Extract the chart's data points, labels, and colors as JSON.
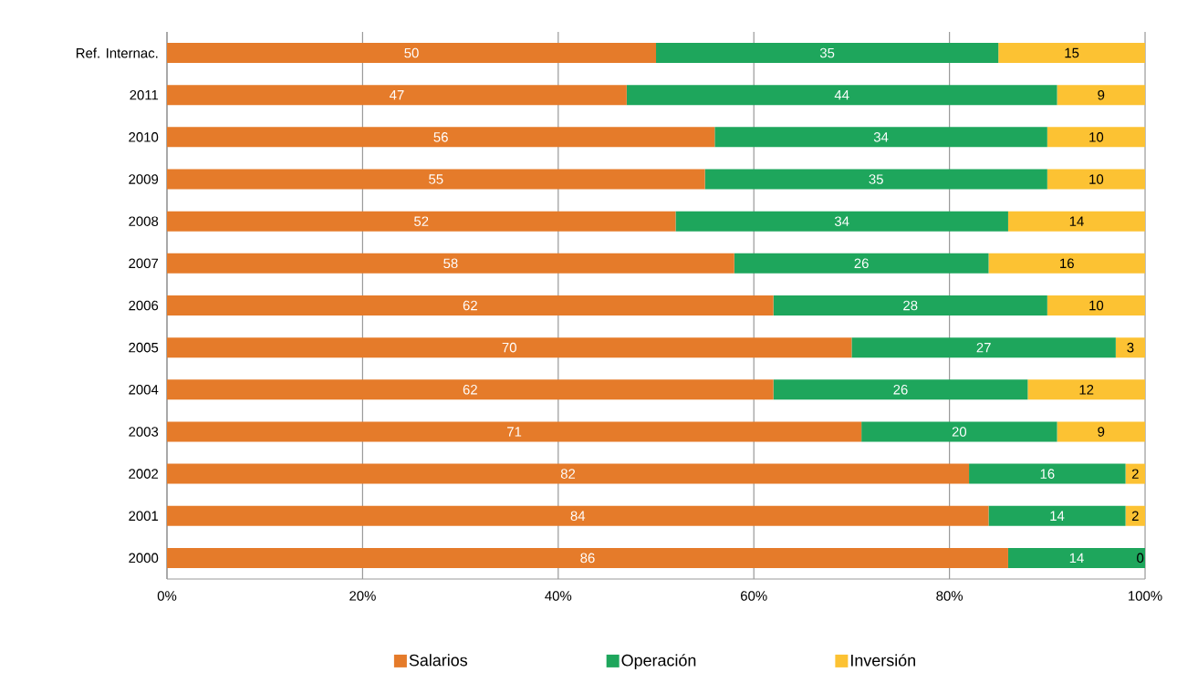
{
  "chart_data": {
    "type": "bar",
    "orientation": "horizontal",
    "stacked": true,
    "categories": [
      "Ref. Internac.",
      "2011",
      "2010",
      "2009",
      "2008",
      "2007",
      "2006",
      "2005",
      "2004",
      "2003",
      "2002",
      "2001",
      "2000"
    ],
    "series": [
      {
        "name": "Salarios",
        "color": "#e57b2a",
        "values": [
          50,
          47,
          56,
          55,
          52,
          58,
          62,
          70,
          62,
          71,
          82,
          84,
          86
        ]
      },
      {
        "name": "Operación",
        "color": "#1ea65c",
        "values": [
          35,
          44,
          34,
          35,
          34,
          26,
          28,
          27,
          26,
          20,
          16,
          14,
          14
        ]
      },
      {
        "name": "Inversión",
        "color": "#fcc233",
        "values": [
          15,
          9,
          10,
          10,
          14,
          16,
          10,
          3,
          12,
          9,
          2,
          2,
          0
        ]
      }
    ],
    "xlim": [
      0,
      100
    ],
    "xticks": [
      {
        "value": 0,
        "label": "0%"
      },
      {
        "value": 20,
        "label": "20%"
      },
      {
        "value": 40,
        "label": "40%"
      },
      {
        "value": 60,
        "label": "60%"
      },
      {
        "value": 80,
        "label": "80%"
      },
      {
        "value": 100,
        "label": "100%"
      }
    ],
    "grid": "x",
    "legend": "bottom",
    "data_labels": true
  }
}
